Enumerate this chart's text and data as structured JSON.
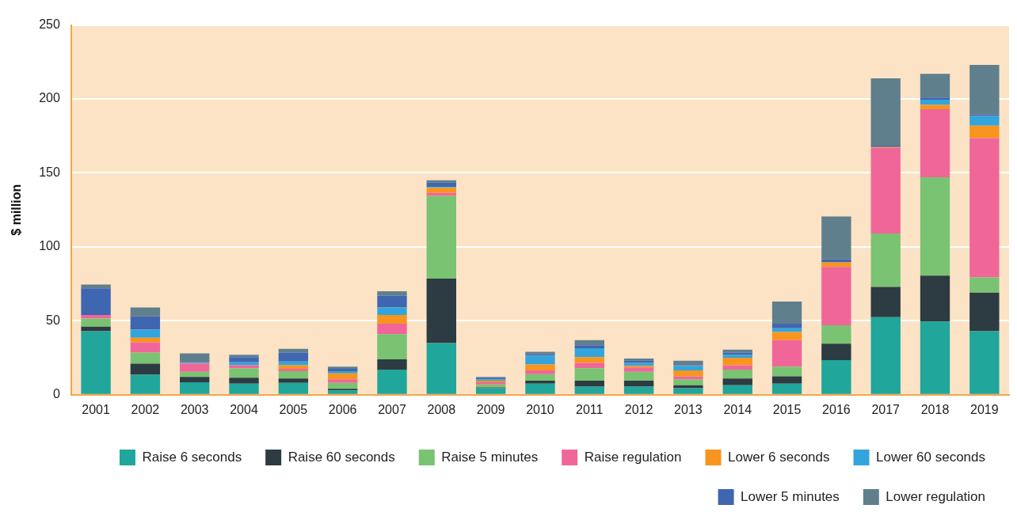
{
  "chart_data": {
    "type": "bar",
    "stacked": true,
    "ylabel": "$ million",
    "categories": [
      "2001",
      "2002",
      "2003",
      "2004",
      "2005",
      "2006",
      "2007",
      "2008",
      "2009",
      "2010",
      "2011",
      "2012",
      "2013",
      "2014",
      "2015",
      "2016",
      "2017",
      "2018",
      "2019"
    ],
    "series": [
      {
        "name": "Raise 6 seconds",
        "color": "#20a69a",
        "values": [
          43,
          13.5,
          8.5,
          7.5,
          8,
          3,
          17,
          35,
          4.5,
          7.5,
          5.5,
          5.5,
          4.5,
          6.5,
          7.5,
          23.5,
          52.5,
          49.5,
          43
        ]
      },
      {
        "name": "Raise 60 seconds",
        "color": "#2d3b43",
        "values": [
          3,
          7.5,
          3.5,
          4,
          3,
          1,
          7,
          43.5,
          0.5,
          2,
          4,
          4,
          2,
          4.5,
          5,
          11,
          20.5,
          31,
          26
        ]
      },
      {
        "name": "Raise 5 minutes",
        "color": "#79c372",
        "values": [
          5.5,
          7.5,
          3.5,
          6.5,
          5,
          4,
          17,
          56,
          2,
          4.5,
          8.5,
          6,
          4,
          6,
          6.5,
          12.5,
          36,
          66.5,
          10.5
        ]
      },
      {
        "name": "Raise regulation",
        "color": "#f06699",
        "values": [
          2.5,
          7,
          5.5,
          2,
          1.5,
          2.5,
          7,
          2,
          1.5,
          2.5,
          3.5,
          3,
          2,
          3,
          18,
          39.5,
          58,
          46,
          94
        ]
      },
      {
        "name": "Lower 6 seconds",
        "color": "#f7951e",
        "values": [
          0,
          3,
          0,
          null,
          2.5,
          4,
          6,
          3.5,
          1,
          4,
          4,
          1,
          4,
          5,
          5.5,
          3,
          0.5,
          3,
          8.5
        ]
      },
      {
        "name": "Lower 60 seconds",
        "color": "#34a4dc",
        "values": [
          0,
          5.5,
          0.5,
          2,
          2.5,
          1.5,
          5,
          0.5,
          1,
          6,
          6,
          2,
          3,
          2,
          2.5,
          0,
          0,
          3.5,
          6.5
        ]
      },
      {
        "name": "Lower 5 minutes",
        "color": "#3f66b0",
        "values": [
          18,
          9,
          0.5,
          3.5,
          6,
          1.5,
          8,
          3,
          1,
          1,
          2,
          1.5,
          0.5,
          1.5,
          3,
          2,
          1,
          1.5,
          1
        ]
      },
      {
        "name": "Lower regulation",
        "color": "#5f7f8c",
        "values": [
          2.5,
          6,
          6,
          1.5,
          2.5,
          1.5,
          3,
          1.5,
          0.5,
          1.5,
          3.5,
          1.5,
          3,
          2,
          15,
          29,
          45.5,
          16,
          33.5
        ]
      }
    ],
    "ylim": [
      0,
      250
    ],
    "yticks": [
      0,
      50,
      100,
      150,
      200,
      250
    ],
    "grid": "y",
    "legend": "bottom right"
  }
}
